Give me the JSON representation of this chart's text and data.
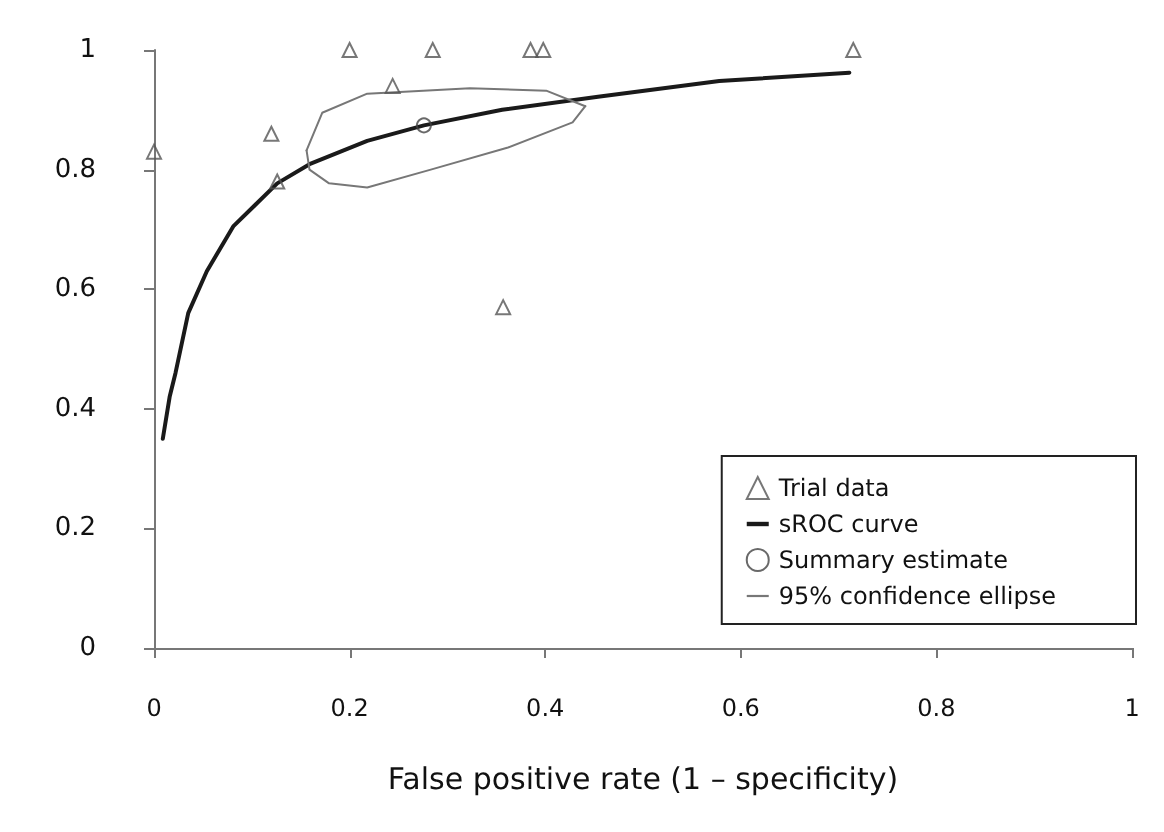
{
  "chart_data": {
    "type": "scatter",
    "xlabel": "False positive rate (1 – specificity)",
    "xlim": [
      0,
      1
    ],
    "xticks": [
      0,
      0.2,
      0.4,
      0.6,
      0.8,
      1
    ],
    "ylim": [
      0,
      1
    ],
    "yticks": [
      0,
      0.2,
      0.4,
      0.6,
      0.8,
      1
    ],
    "grid": false,
    "legend": "bottom right",
    "series": [
      {
        "name": "Trial data",
        "marker": "triangle",
        "color": "#555555",
        "x": [
          0,
          0.12,
          0.126,
          0.2,
          0.244,
          0.285,
          0.357,
          0.385,
          0.398,
          0.715
        ],
        "values": [
          0.83,
          0.86,
          0.78,
          1,
          0.94,
          1,
          0.57,
          1,
          1,
          1
        ]
      },
      {
        "name": "sROC curve",
        "type": "line",
        "marker": "none",
        "color": "#1a1a1a",
        "x": [
          0.009,
          0.016,
          0.022,
          0.035,
          0.054,
          0.081,
          0.126,
          0.159,
          0.218,
          0.276,
          0.356,
          0.454,
          0.578,
          0.711
        ],
        "values": [
          0.35,
          0.42,
          0.46,
          0.56,
          0.63,
          0.705,
          0.777,
          0.809,
          0.848,
          0.874,
          0.9,
          0.922,
          0.948,
          0.962
        ]
      },
      {
        "name": "Summary estimate",
        "marker": "circle",
        "color": "#444444",
        "x": [
          0.276
        ],
        "values": [
          0.874
        ]
      },
      {
        "name": "95% confidence ellipse",
        "type": "line",
        "marker": "none",
        "color": "#777777",
        "x": [
          0.156,
          0.172,
          0.218,
          0.323,
          0.401,
          0.441
        ],
        "values": [
          0.832,
          0.895,
          0.927,
          0.936,
          0.932,
          0.906
        ]
      },
      {
        "type": "line",
        "marker": "none",
        "color": "#777777",
        "x": [
          0.156,
          0.159,
          0.179,
          0.218,
          0.283,
          0.362,
          0.428,
          0.441
        ],
        "values": [
          0.832,
          0.8,
          0.777,
          0.77,
          0.8,
          0.837,
          0.879,
          0.906
        ]
      }
    ]
  }
}
